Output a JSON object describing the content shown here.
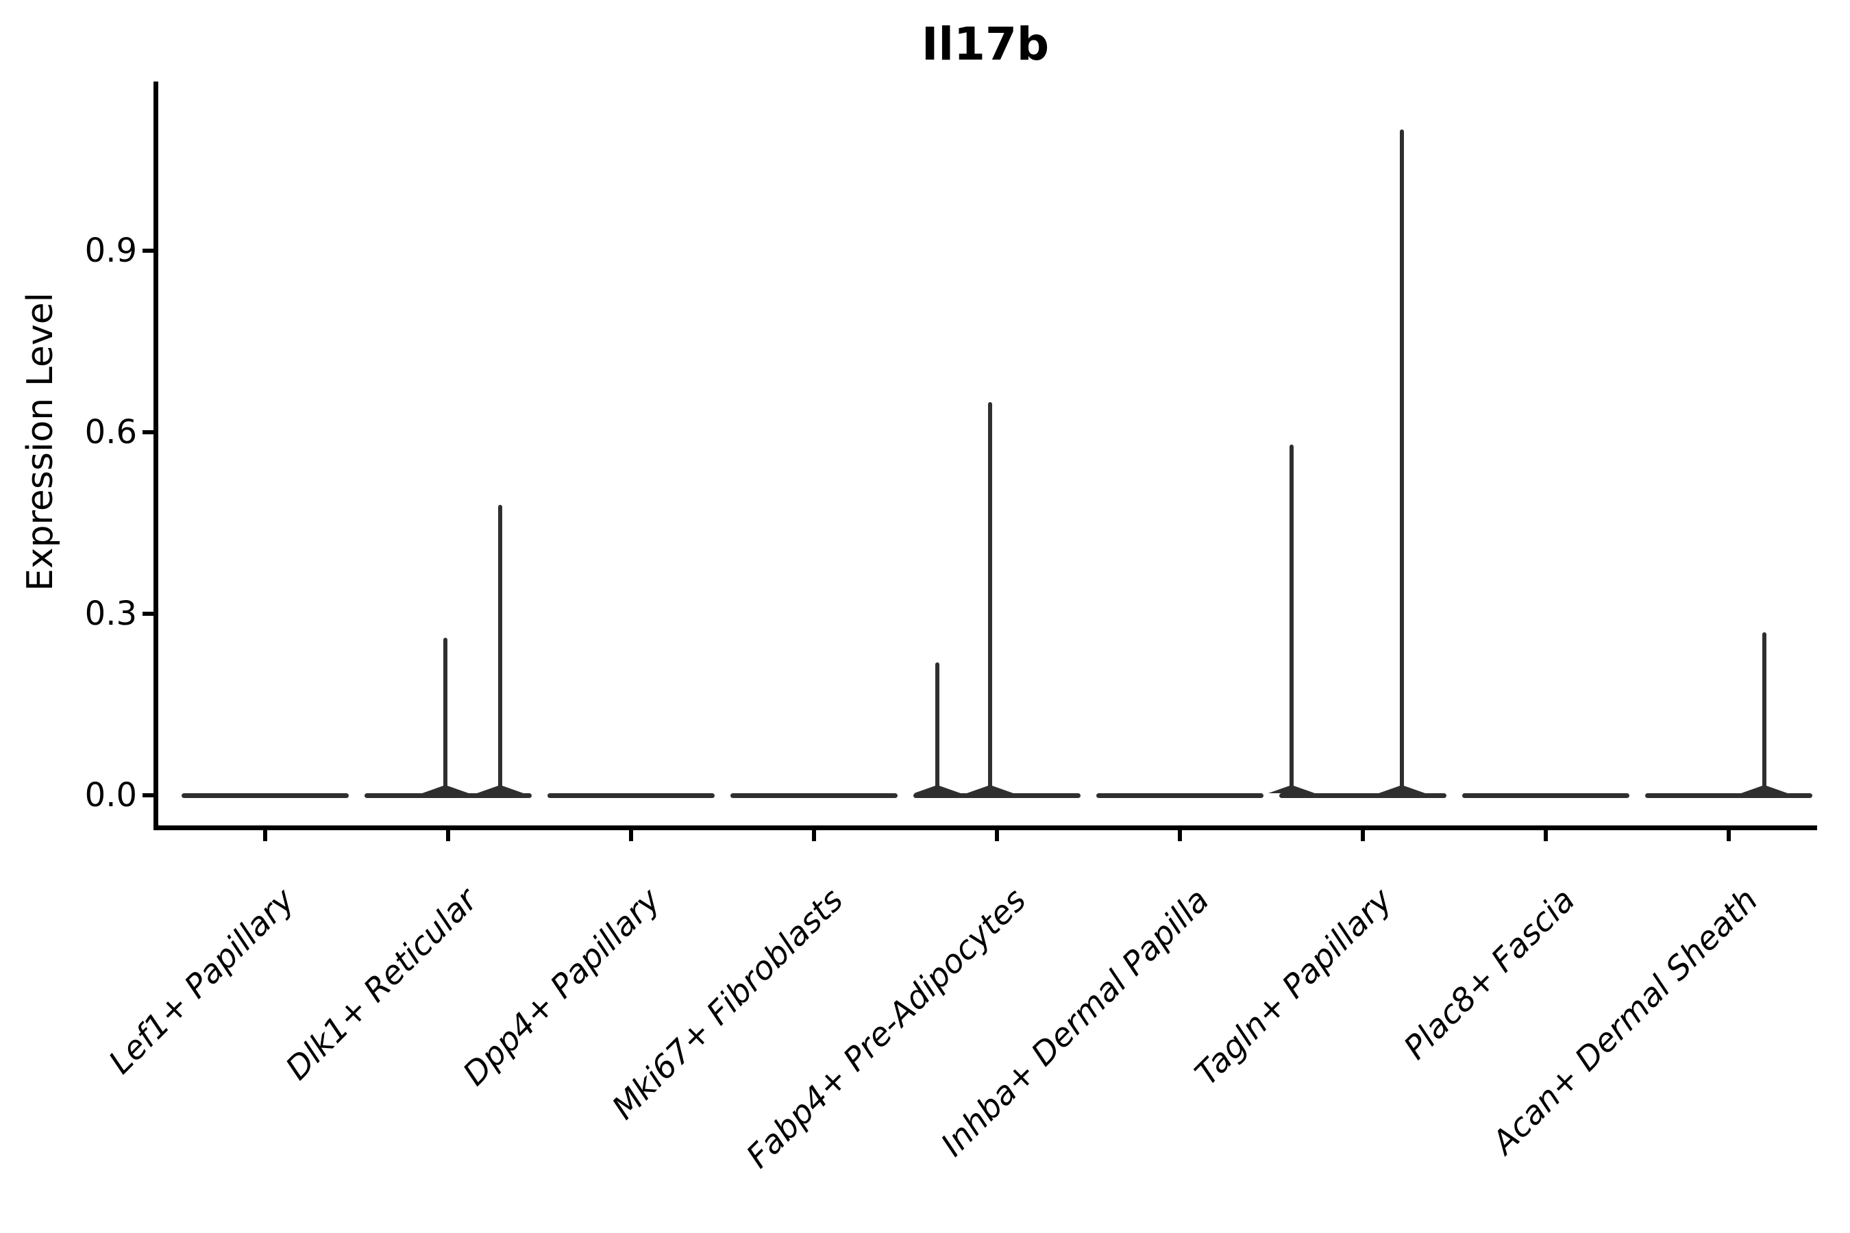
{
  "title": "Il17b",
  "y_axis": {
    "label": "Expression Level",
    "tick_labels": [
      "0.0",
      "0.3",
      "0.6",
      "0.9"
    ]
  },
  "colors": {
    "violin": "#2f2f2f",
    "axis": "#000000",
    "text": "#000000",
    "background": "#ffffff"
  },
  "chart_data": {
    "type": "violin",
    "title": "Il17b",
    "xlabel": "",
    "ylabel": "Expression Level",
    "ylim": [
      0,
      1.18
    ],
    "y_ticks": [
      0.0,
      0.3,
      0.6,
      0.9
    ],
    "grid": false,
    "legend": "none",
    "categories": [
      "Lef1+ Papillary",
      "Dlk1+ Reticular",
      "Dpp4+ Papillary",
      "Mki67+ Fibroblasts",
      "Fabp4+ Pre-Adipocytes",
      "Inhba+ Dermal Papilla",
      "Tagln+ Papillary",
      "Plac8+ Fascia",
      "Acan+ Dermal Sheath"
    ],
    "violins": [
      {
        "category": "Lef1+ Papillary",
        "baseline_value": 0,
        "max_value": 0,
        "spikes": []
      },
      {
        "category": "Dlk1+ Reticular",
        "baseline_value": 0,
        "max_value": 0.48,
        "spikes": [
          {
            "dx": -4,
            "value": 0.26
          },
          {
            "dx": 76,
            "value": 0.48
          }
        ]
      },
      {
        "category": "Dpp4+ Papillary",
        "baseline_value": 0,
        "max_value": 0,
        "spikes": []
      },
      {
        "category": "Mki67+ Fibroblasts",
        "baseline_value": 0,
        "max_value": 0,
        "spikes": []
      },
      {
        "category": "Fabp4+ Pre-Adipocytes",
        "baseline_value": 0,
        "max_value": 0.65,
        "spikes": [
          {
            "dx": -87,
            "value": 0.22
          },
          {
            "dx": -10,
            "value": 0.65
          }
        ]
      },
      {
        "category": "Inhba+ Dermal Papilla",
        "baseline_value": 0,
        "max_value": 0,
        "spikes": []
      },
      {
        "category": "Tagln+ Papillary",
        "baseline_value": 0,
        "max_value": 1.1,
        "spikes": [
          {
            "dx": -104,
            "value": 0.58
          },
          {
            "dx": 57,
            "value": 1.1
          }
        ]
      },
      {
        "category": "Plac8+ Fascia",
        "baseline_value": 0,
        "max_value": 0,
        "spikes": []
      },
      {
        "category": "Acan+ Dermal Sheath",
        "baseline_value": 0,
        "max_value": 0.27,
        "spikes": [
          {
            "dx": 52,
            "value": 0.27
          }
        ]
      }
    ]
  }
}
